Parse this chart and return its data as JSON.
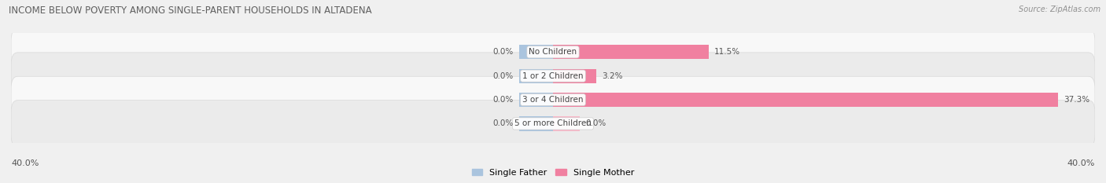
{
  "title": "INCOME BELOW POVERTY AMONG SINGLE-PARENT HOUSEHOLDS IN ALTADENA",
  "source": "Source: ZipAtlas.com",
  "categories": [
    "No Children",
    "1 or 2 Children",
    "3 or 4 Children",
    "5 or more Children"
  ],
  "single_father": [
    0.0,
    0.0,
    0.0,
    0.0
  ],
  "single_mother": [
    11.5,
    3.2,
    37.3,
    0.0
  ],
  "father_color": "#aac4de",
  "mother_color": "#f080a0",
  "mother_color_light": "#f8b8c8",
  "xlim_left": -40.0,
  "xlim_right": 40.0,
  "x_left_label": "40.0%",
  "x_right_label": "40.0%",
  "bar_height": 0.6,
  "bg_color": "#f0f0f0",
  "row_colors": [
    "#f8f8f8",
    "#ebebeb",
    "#f8f8f8",
    "#ebebeb"
  ],
  "legend_father": "Single Father",
  "legend_mother": "Single Mother",
  "title_color": "#606060",
  "source_color": "#909090",
  "label_color": "#555555",
  "center_label_color": "#444444",
  "father_stub": 2.5,
  "mother_stub_small": 2.0
}
